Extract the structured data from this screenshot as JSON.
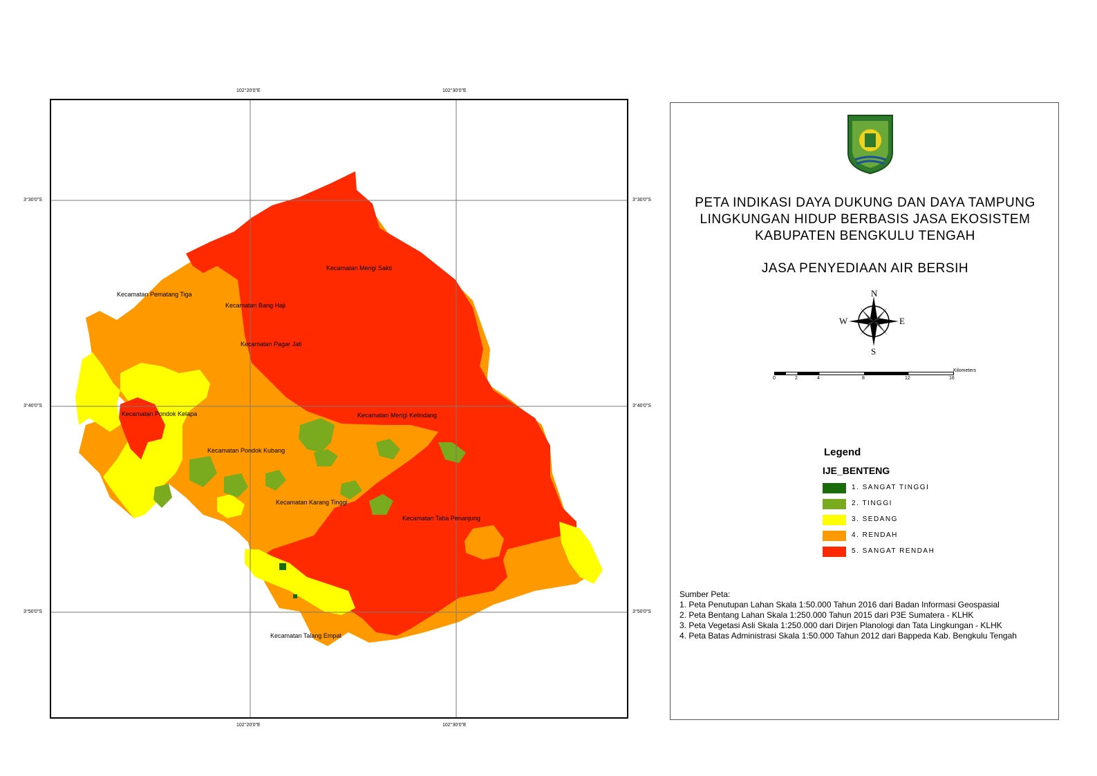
{
  "coordinates": {
    "lon_20": "102°20'0\"E",
    "lon_30": "102°30'0\"E",
    "lat_30": "3°30'0\"S",
    "lat_40": "3°40'0\"S",
    "lat_50": "3°50'0\"S"
  },
  "districts": [
    "Kecamatan Merigi Sakti",
    "Kecamatan Pematang Tiga",
    "Kecamatan Bang Haji",
    "Kecamatan Pagar Jati",
    "Kecamatan Pondok Kelapa",
    "Kecamatan Merigi Kelindang",
    "Kecamatan Pondok Kubang",
    "Kecamatan Karang Tinggi",
    "Kecamatan Taba Penanjung",
    "Kecamatan Talang Empat"
  ],
  "title": {
    "line1": "PETA INDIKASI DAYA DUKUNG DAN DAYA TAMPUNG",
    "line2": "LINGKUNGAN HIDUP BERBASIS JASA EKOSISTEM",
    "line3": "KABUPATEN BENGKULU TENGAH",
    "subtitle": "JASA PENYEDIAAN AIR BERSIH"
  },
  "compass": {
    "n": "N",
    "s": "S",
    "e": "E",
    "w": "W"
  },
  "scale_bar": {
    "ticks": [
      "0",
      "2",
      "4",
      "8",
      "12",
      "16"
    ],
    "unit": "Kilometers"
  },
  "legend": {
    "title": "Legend",
    "layer": "IJE_BENTENG",
    "items": [
      {
        "label": "1. SANGAT TINGGI",
        "color": "#1a6b0a"
      },
      {
        "label": "2. TINGGI",
        "color": "#7aab1e"
      },
      {
        "label": "3. SEDANG",
        "color": "#ffff00"
      },
      {
        "label": "4. RENDAH",
        "color": "#ff9900"
      },
      {
        "label": "5. SANGAT RENDAH",
        "color": "#ff2a00"
      }
    ]
  },
  "sources": {
    "heading": "Sumber Peta:",
    "items": [
      "1. Peta Penutupan Lahan Skala 1:50.000 Tahun 2016 dari Badan Informasi Geospasial",
      "2. Peta Bentang Lahan Skala 1:250.000 Tahun 2015 dari  P3E Sumatera - KLHK",
      "3. Peta Vegetasi Asli Skala 1:250.000 dari Dirjen Planologi dan Tata Lingkungan - KLHK",
      "4. Peta Batas Administrasi Skala 1:50.000 Tahun 2012 dari Bappeda Kab. Bengkulu Tengah"
    ]
  }
}
